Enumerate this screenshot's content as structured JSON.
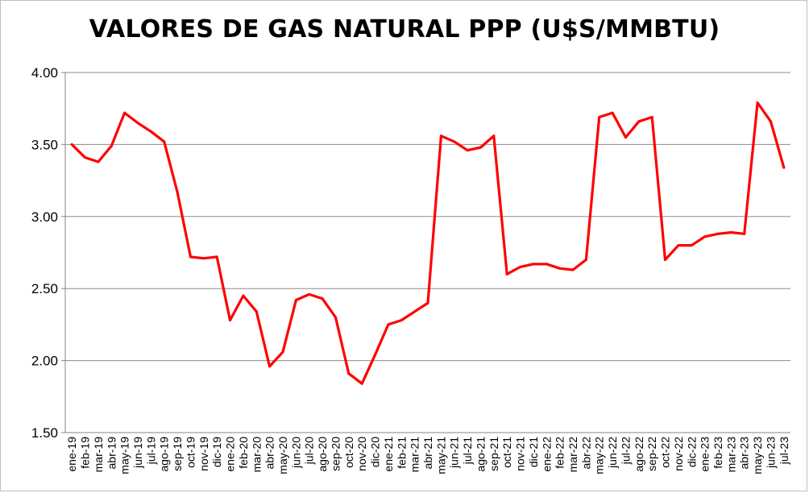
{
  "chart_data": {
    "type": "line",
    "title": "VALORES DE GAS NATURAL PPP (U$S/MMBTU)",
    "xlabel": "",
    "ylabel": "",
    "ylim": [
      1.5,
      4.0
    ],
    "yticks": [
      "1.50",
      "2.00",
      "2.50",
      "3.00",
      "3.50",
      "4.00"
    ],
    "ytick_values": [
      1.5,
      2.0,
      2.5,
      3.0,
      3.5,
      4.0
    ],
    "grid": true,
    "legend": "none",
    "line_color": "#ff0000",
    "categories": [
      "ene-19",
      "feb-19",
      "mar-19",
      "abr-19",
      "may-19",
      "jun-19",
      "jul-19",
      "ago-19",
      "sep-19",
      "oct-19",
      "nov-19",
      "dic-19",
      "ene-20",
      "feb-20",
      "mar-20",
      "abr-20",
      "may-20",
      "jun-20",
      "jul-20",
      "ago-20",
      "sep-20",
      "oct-20",
      "nov-20",
      "dic-20",
      "ene-21",
      "feb-21",
      "mar-21",
      "abr-21",
      "may-21",
      "jun-21",
      "jul-21",
      "ago-21",
      "sep-21",
      "oct-21",
      "nov-21",
      "dic-21",
      "ene-22",
      "feb-22",
      "mar-22",
      "abr-22",
      "may-22",
      "jun-22",
      "jul-22",
      "ago-22",
      "sep-22",
      "oct-22",
      "nov-22",
      "dic-22",
      "ene-23",
      "feb-23",
      "mar-23",
      "abr-23",
      "may-23",
      "jun-23",
      "jul-23"
    ],
    "series": [
      {
        "values": [
          3.5,
          3.41,
          3.38,
          3.49,
          3.72,
          3.65,
          3.59,
          3.52,
          3.17,
          2.72,
          2.71,
          2.72,
          2.28,
          2.45,
          2.34,
          1.96,
          2.06,
          2.42,
          2.46,
          2.43,
          2.3,
          1.91,
          1.84,
          2.04,
          2.25,
          2.28,
          2.34,
          2.4,
          3.56,
          3.52,
          3.46,
          3.48,
          3.56,
          2.6,
          2.65,
          2.67,
          2.67,
          2.64,
          2.63,
          2.7,
          3.69,
          3.72,
          3.55,
          3.66,
          3.69,
          2.7,
          2.8,
          2.8,
          2.86,
          2.88,
          2.89,
          2.88,
          3.79,
          3.66,
          3.34
        ]
      }
    ]
  }
}
